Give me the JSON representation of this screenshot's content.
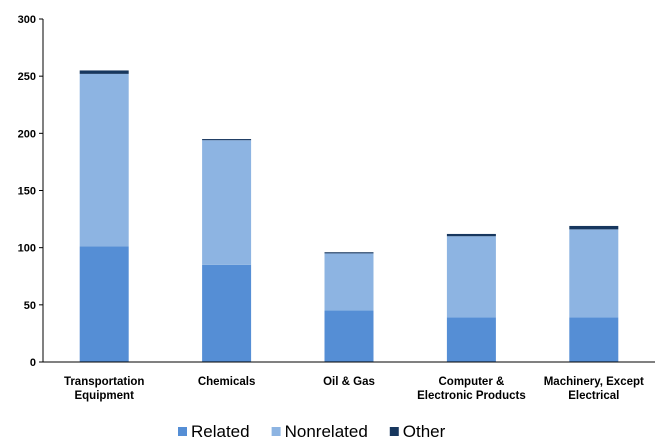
{
  "chart_data": {
    "type": "bar",
    "stacked": true,
    "categories": [
      [
        "Transportation",
        "Equipment"
      ],
      [
        "Chemicals"
      ],
      [
        "Oil & Gas"
      ],
      [
        "Computer &",
        "Electronic Products"
      ],
      [
        "Machinery, Except",
        "Electrical"
      ]
    ],
    "series": [
      {
        "name": "Related",
        "color": "#558ed5",
        "values": [
          101,
          85,
          45,
          39,
          39
        ]
      },
      {
        "name": "Nonrelated",
        "color": "#8db4e2",
        "values": [
          151,
          109,
          50,
          71,
          77
        ]
      },
      {
        "name": "Other",
        "color": "#17375e",
        "values": [
          3,
          1,
          1,
          2,
          3
        ]
      }
    ],
    "ylim": [
      0,
      300
    ],
    "yticks": [
      0,
      50,
      100,
      150,
      200,
      250,
      300
    ],
    "grid": false,
    "legend_position": "bottom"
  }
}
